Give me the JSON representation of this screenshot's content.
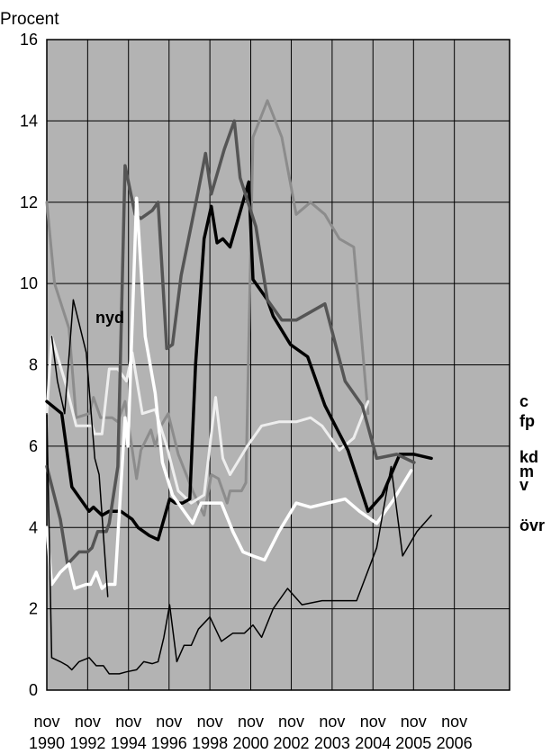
{
  "chart_data": {
    "type": "line",
    "ylabel": "Procent",
    "ylim": [
      0,
      16
    ],
    "yticks": [
      "0",
      "2",
      "4",
      "6",
      "8",
      "10",
      "12",
      "14",
      "16"
    ],
    "xlim": [
      1990.83,
      2006.92
    ],
    "xticks": [
      {
        "top": "nov",
        "bottom": "1990",
        "x": 1990.83
      },
      {
        "top": "nov",
        "bottom": "1992",
        "x": 1992.25
      },
      {
        "top": "nov",
        "bottom": "1994",
        "x": 1993.67
      },
      {
        "top": "nov",
        "bottom": "1996",
        "x": 1995.08
      },
      {
        "top": "nov",
        "bottom": "1998",
        "x": 1996.5
      },
      {
        "top": "nov",
        "bottom": "2000",
        "x": 1997.92
      },
      {
        "top": "nov",
        "bottom": "2002",
        "x": 1999.33
      },
      {
        "top": "nov",
        "bottom": "2003",
        "x": 2000.75
      },
      {
        "top": "nov",
        "bottom": "2004",
        "x": 2002.17
      },
      {
        "top": "nov",
        "bottom": "2005",
        "x": 2003.58
      },
      {
        "top": "nov",
        "bottom": "2006",
        "x": 2005.0
      }
    ],
    "grid": true,
    "background": "#b3b3b3",
    "series": [
      {
        "name": "c",
        "color": "#8c8c8c",
        "width": 3,
        "label": "c",
        "points": [
          [
            1990.83,
            12.0
          ],
          [
            1991.1,
            10.0
          ],
          [
            1991.6,
            8.9
          ],
          [
            1991.85,
            6.7
          ],
          [
            1992.3,
            6.8
          ],
          [
            1992.45,
            7.2
          ],
          [
            1992.7,
            6.7
          ],
          [
            1993.1,
            6.7
          ],
          [
            1993.3,
            6.6
          ],
          [
            1993.55,
            7.1
          ],
          [
            1993.95,
            5.2
          ],
          [
            1994.1,
            5.9
          ],
          [
            1994.45,
            6.4
          ],
          [
            1994.6,
            6.0
          ],
          [
            1994.8,
            6.5
          ],
          [
            1995.05,
            6.8
          ],
          [
            1995.4,
            5.8
          ],
          [
            1995.9,
            4.9
          ],
          [
            1996.3,
            4.3
          ],
          [
            1996.55,
            5.3
          ],
          [
            1996.8,
            5.2
          ],
          [
            1997.1,
            4.6
          ],
          [
            1997.2,
            4.9
          ],
          [
            1997.6,
            4.9
          ],
          [
            1997.75,
            5.1
          ],
          [
            1998.0,
            13.6
          ],
          [
            1998.5,
            14.5
          ],
          [
            1999.0,
            13.6
          ],
          [
            1999.5,
            11.7
          ],
          [
            2000.0,
            12.0
          ],
          [
            2000.5,
            11.7
          ],
          [
            2001.0,
            11.1
          ],
          [
            2001.5,
            10.9
          ],
          [
            2002.0,
            6.8
          ]
        ]
      },
      {
        "name": "fp",
        "color": "#eeeeee",
        "width": 3,
        "label": "fp",
        "points": [
          [
            1990.83,
            6.8
          ],
          [
            1991.0,
            8.7
          ],
          [
            1991.5,
            7.5
          ],
          [
            1991.85,
            6.5
          ],
          [
            1992.4,
            6.5
          ],
          [
            1992.5,
            6.3
          ],
          [
            1992.75,
            6.3
          ],
          [
            1993.0,
            7.9
          ],
          [
            1993.3,
            7.9
          ],
          [
            1993.6,
            7.6
          ],
          [
            1993.8,
            8.3
          ],
          [
            1994.15,
            6.8
          ],
          [
            1994.6,
            6.9
          ],
          [
            1995.0,
            6.0
          ],
          [
            1995.4,
            4.9
          ],
          [
            1995.85,
            4.6
          ],
          [
            1996.3,
            4.8
          ],
          [
            1996.7,
            7.2
          ],
          [
            1996.95,
            5.7
          ],
          [
            1997.2,
            5.3
          ],
          [
            1997.8,
            6.0
          ],
          [
            1998.3,
            6.5
          ],
          [
            1998.9,
            6.6
          ],
          [
            1999.5,
            6.6
          ],
          [
            2000.0,
            6.7
          ],
          [
            2000.4,
            6.5
          ],
          [
            2001.0,
            5.9
          ],
          [
            2001.5,
            6.2
          ],
          [
            2002.0,
            7.1
          ]
        ]
      },
      {
        "name": "kd",
        "color": "#000000",
        "width": 3.5,
        "label": "kd",
        "points": [
          [
            1990.83,
            7.1
          ],
          [
            1991.35,
            6.8
          ],
          [
            1991.7,
            5.0
          ],
          [
            1992.3,
            4.4
          ],
          [
            1992.45,
            4.5
          ],
          [
            1992.75,
            4.3
          ],
          [
            1993.0,
            4.4
          ],
          [
            1993.4,
            4.4
          ],
          [
            1993.8,
            4.2
          ],
          [
            1994.0,
            4.0
          ],
          [
            1994.4,
            3.8
          ],
          [
            1994.7,
            3.7
          ],
          [
            1995.1,
            4.7
          ],
          [
            1995.3,
            4.6
          ],
          [
            1995.55,
            4.6
          ],
          [
            1995.8,
            4.7
          ],
          [
            1996.0,
            8.0
          ],
          [
            1996.3,
            11.1
          ],
          [
            1996.55,
            11.9
          ],
          [
            1996.75,
            11.0
          ],
          [
            1996.95,
            11.1
          ],
          [
            1997.2,
            10.9
          ],
          [
            1997.85,
            12.5
          ],
          [
            1998.0,
            10.1
          ],
          [
            1998.5,
            9.6
          ],
          [
            1998.7,
            9.2
          ],
          [
            1999.3,
            8.5
          ],
          [
            1999.9,
            8.2
          ],
          [
            2000.5,
            7.0
          ],
          [
            2001.3,
            5.9
          ],
          [
            2002.0,
            4.4
          ],
          [
            2002.5,
            4.8
          ],
          [
            2003.1,
            5.8
          ],
          [
            2003.6,
            5.8
          ],
          [
            2004.2,
            5.7
          ]
        ]
      },
      {
        "name": "m",
        "color": "#555555",
        "width": 3.5,
        "label": "m",
        "points": [
          [
            1990.83,
            5.5
          ],
          [
            1991.3,
            4.2
          ],
          [
            1991.55,
            3.1
          ],
          [
            1991.95,
            3.4
          ],
          [
            1992.25,
            3.4
          ],
          [
            1992.4,
            3.5
          ],
          [
            1992.6,
            3.9
          ],
          [
            1992.9,
            3.9
          ],
          [
            1993.0,
            4.1
          ],
          [
            1993.3,
            5.5
          ],
          [
            1993.55,
            12.9
          ],
          [
            1993.9,
            11.7
          ],
          [
            1994.1,
            11.6
          ],
          [
            1994.5,
            11.8
          ],
          [
            1994.7,
            12.0
          ],
          [
            1995.0,
            8.4
          ],
          [
            1995.2,
            8.5
          ],
          [
            1995.5,
            10.2
          ],
          [
            1996.1,
            12.3
          ],
          [
            1996.35,
            13.2
          ],
          [
            1996.55,
            12.2
          ],
          [
            1997.0,
            13.3
          ],
          [
            1997.35,
            14.0
          ],
          [
            1997.55,
            12.6
          ],
          [
            1998.1,
            11.4
          ],
          [
            1998.5,
            9.6
          ],
          [
            1999.0,
            9.1
          ],
          [
            1999.5,
            9.1
          ],
          [
            2000.0,
            9.3
          ],
          [
            2000.5,
            9.5
          ],
          [
            2001.2,
            7.6
          ],
          [
            2001.8,
            7.0
          ],
          [
            2002.3,
            5.7
          ],
          [
            2003.0,
            5.8
          ],
          [
            2003.6,
            5.6
          ]
        ]
      },
      {
        "name": "v",
        "color": "#ffffff",
        "width": 3.5,
        "label": "v",
        "points": [
          [
            1990.83,
            4.0
          ],
          [
            1991.0,
            2.6
          ],
          [
            1991.3,
            2.9
          ],
          [
            1991.6,
            3.1
          ],
          [
            1991.8,
            2.5
          ],
          [
            1992.2,
            2.6
          ],
          [
            1992.35,
            2.6
          ],
          [
            1992.55,
            2.9
          ],
          [
            1992.75,
            2.5
          ],
          [
            1992.9,
            2.6
          ],
          [
            1993.2,
            2.6
          ],
          [
            1993.55,
            6.7
          ],
          [
            1993.65,
            6.0
          ],
          [
            1993.95,
            12.1
          ],
          [
            1994.25,
            8.7
          ],
          [
            1994.6,
            7.3
          ],
          [
            1994.85,
            5.6
          ],
          [
            1995.2,
            4.8
          ],
          [
            1995.5,
            4.5
          ],
          [
            1995.9,
            4.1
          ],
          [
            1996.2,
            4.6
          ],
          [
            1996.6,
            4.6
          ],
          [
            1996.9,
            4.6
          ],
          [
            1997.3,
            3.9
          ],
          [
            1997.65,
            3.4
          ],
          [
            1998.0,
            3.3
          ],
          [
            1998.4,
            3.2
          ],
          [
            1998.9,
            3.9
          ],
          [
            1999.5,
            4.6
          ],
          [
            2000.0,
            4.5
          ],
          [
            2000.6,
            4.6
          ],
          [
            2001.2,
            4.7
          ],
          [
            2001.7,
            4.4
          ],
          [
            2002.3,
            4.1
          ],
          [
            2002.9,
            4.7
          ],
          [
            2003.5,
            5.4
          ]
        ]
      },
      {
        "name": "nyd",
        "color": "#000000",
        "width": 1.5,
        "label": "nyd",
        "points": [
          [
            1991.0,
            8.7
          ],
          [
            1991.2,
            7.6
          ],
          [
            1991.45,
            6.8
          ],
          [
            1991.75,
            9.6
          ],
          [
            1992.2,
            8.3
          ],
          [
            1992.5,
            5.7
          ],
          [
            1992.65,
            5.3
          ],
          [
            1992.8,
            3.8
          ],
          [
            1992.95,
            2.3
          ]
        ]
      },
      {
        "name": "övr",
        "color": "#000000",
        "width": 1.5,
        "label": "övr",
        "points": [
          [
            1990.83,
            6.8
          ],
          [
            1991.0,
            0.8
          ],
          [
            1991.3,
            0.7
          ],
          [
            1991.55,
            0.6
          ],
          [
            1991.7,
            0.5
          ],
          [
            1991.95,
            0.7
          ],
          [
            1992.3,
            0.8
          ],
          [
            1992.55,
            0.6
          ],
          [
            1992.8,
            0.6
          ],
          [
            1993.0,
            0.4
          ],
          [
            1993.35,
            0.4
          ],
          [
            1993.6,
            0.45
          ],
          [
            1993.95,
            0.5
          ],
          [
            1994.2,
            0.7
          ],
          [
            1994.5,
            0.65
          ],
          [
            1994.7,
            0.7
          ],
          [
            1994.9,
            1.3
          ],
          [
            1995.1,
            2.1
          ],
          [
            1995.35,
            0.7
          ],
          [
            1995.6,
            1.1
          ],
          [
            1995.85,
            1.1
          ],
          [
            1996.1,
            1.5
          ],
          [
            1996.5,
            1.8
          ],
          [
            1996.9,
            1.2
          ],
          [
            1997.3,
            1.4
          ],
          [
            1997.7,
            1.4
          ],
          [
            1998.0,
            1.6
          ],
          [
            1998.3,
            1.3
          ],
          [
            1998.7,
            2.0
          ],
          [
            1999.2,
            2.5
          ],
          [
            1999.7,
            2.1
          ],
          [
            2000.4,
            2.2
          ],
          [
            2001.2,
            2.2
          ],
          [
            2001.6,
            2.2
          ],
          [
            2002.3,
            3.5
          ],
          [
            2002.8,
            5.5
          ],
          [
            2003.2,
            3.3
          ],
          [
            2003.7,
            3.9
          ],
          [
            2004.2,
            4.3
          ]
        ]
      }
    ]
  }
}
